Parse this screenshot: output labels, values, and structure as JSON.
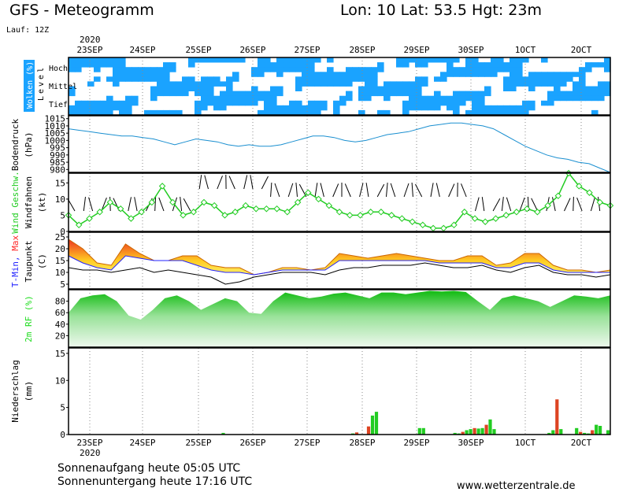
{
  "header": {
    "model": "GFS",
    "dash": "-",
    "title": "Meteogramm",
    "coords": "Lon: 10 Lat: 53.5 Hgt: 23m",
    "run": "Lauf: 12Z"
  },
  "year_top": "2020",
  "year_bottom": "2020",
  "dates": [
    "23SEP",
    "24SEP",
    "25SEP",
    "26SEP",
    "27SEP",
    "28SEP",
    "29SEP",
    "30SEP",
    "1OCT",
    "2OCT"
  ],
  "colors": {
    "cloud": "#1aa3ff",
    "wind": "#22cc22",
    "pressure": "#1a8fd0",
    "tmin": "#2222ff",
    "tmax": "#ff2222",
    "rh": "#22dd22",
    "rain_green": "#22cc22",
    "rain_red": "#dd4422"
  },
  "panels": {
    "clouds": {
      "label_top": "Wolken (%)",
      "label_level": "Level",
      "levels": [
        "Hoch",
        "Mittel",
        "Tief"
      ]
    },
    "pressure": {
      "ylabel1": "Bodendruck",
      "ylabel2": "(hPa)",
      "ticks": [
        "1015",
        "1010",
        "1005",
        "1000",
        "995",
        "990",
        "985",
        "980"
      ]
    },
    "wind": {
      "ylabel1": "Wind Geschw.",
      "ylabel2": "Windfahnen",
      "ylabel3": "(kt)",
      "ticks": [
        "15",
        "10",
        "5",
        "0"
      ]
    },
    "temp": {
      "ylabel_tmin": "T-Min,",
      "ylabel_tmax": "Max",
      "ylabel2": "Taupunkt",
      "ylabel3": "(C)",
      "ticks": [
        "25",
        "20",
        "15",
        "10",
        "5"
      ]
    },
    "rh": {
      "ylabel": "2m RF (%)",
      "ticks": [
        "80",
        "60",
        "40",
        "20"
      ]
    },
    "precip": {
      "ylabel1": "Niederschlag",
      "ylabel2": "(mm)",
      "ticks": [
        "15",
        "10",
        "5",
        "0"
      ]
    }
  },
  "chart_data": [
    {
      "type": "heatmap",
      "title": "Wolken (%)",
      "levels": [
        "Hoch",
        "Mittel",
        "Tief"
      ]
    },
    {
      "type": "line",
      "ylabel": "Bodendruck (hPa)",
      "ylim": [
        978,
        1017
      ],
      "values": [
        1008,
        1007,
        1006,
        1005,
        1004,
        1003,
        1003,
        1002,
        1001,
        999,
        997,
        999,
        1001,
        1000,
        999,
        997,
        996,
        997,
        996,
        996,
        997,
        999,
        1001,
        1003,
        1003,
        1002,
        1000,
        999,
        1000,
        1002,
        1004,
        1005,
        1006,
        1008,
        1010,
        1011,
        1012,
        1012,
        1011,
        1010,
        1008,
        1004,
        1000,
        996,
        993,
        990,
        988,
        987,
        985,
        984,
        981,
        978
      ]
    },
    {
      "type": "line",
      "ylabel": "Wind Geschw. (kt)",
      "ylim": [
        0,
        18
      ],
      "values": [
        5,
        2,
        4,
        6,
        9,
        7,
        4,
        6,
        9,
        14,
        9,
        5,
        6,
        9,
        8,
        5,
        6,
        8,
        7,
        7,
        7,
        6,
        9,
        12,
        10,
        8,
        6,
        5,
        5,
        6,
        6,
        5,
        4,
        3,
        2,
        1,
        1,
        2,
        6,
        4,
        3,
        4,
        5,
        6,
        7,
        6,
        8,
        11,
        18,
        14,
        12,
        9,
        8
      ]
    },
    {
      "type": "area",
      "ylabel": "T-Min, Max / Taupunkt (C)",
      "ylim": [
        3,
        27
      ],
      "series": [
        {
          "name": "Max",
          "values": [
            24,
            20,
            14,
            13,
            22,
            18,
            15,
            15,
            17,
            17,
            13,
            12,
            12,
            9,
            10,
            12,
            12,
            11,
            12,
            18,
            17,
            16,
            17,
            18,
            17,
            16,
            15,
            15,
            17,
            17,
            13,
            14,
            18,
            18,
            13,
            11,
            11,
            10,
            11
          ]
        },
        {
          "name": "Min",
          "values": [
            17,
            14,
            12,
            11,
            17,
            16,
            15,
            15,
            15,
            13,
            11,
            10,
            10,
            9,
            10,
            11,
            11,
            11,
            11,
            15,
            15,
            15,
            15,
            15,
            15,
            15,
            14,
            14,
            14,
            14,
            12,
            12,
            14,
            14,
            11,
            10,
            10,
            10,
            10
          ]
        },
        {
          "name": "Taupunkt",
          "values": [
            12,
            11,
            11,
            10,
            11,
            12,
            10,
            11,
            10,
            9,
            8,
            5,
            6,
            8,
            9,
            10,
            10,
            10,
            9,
            11,
            12,
            12,
            13,
            13,
            13,
            14,
            13,
            12,
            12,
            13,
            11,
            10,
            12,
            13,
            10,
            9,
            9,
            8,
            9
          ]
        }
      ]
    },
    {
      "type": "area",
      "ylabel": "2m RF (%)",
      "ylim": [
        0,
        100
      ],
      "values": [
        60,
        85,
        90,
        92,
        80,
        55,
        48,
        65,
        85,
        90,
        80,
        65,
        75,
        85,
        80,
        60,
        58,
        80,
        95,
        90,
        85,
        88,
        93,
        95,
        90,
        85,
        95,
        95,
        92,
        95,
        98,
        97,
        98,
        96,
        80,
        65,
        85,
        90,
        85,
        80,
        70,
        80,
        90,
        88,
        85,
        90
      ]
    },
    {
      "type": "bar",
      "ylabel": "Niederschlag (mm)",
      "ylim": [
        0,
        16
      ],
      "values": [
        0,
        0,
        0,
        0,
        0,
        0,
        0,
        0,
        0,
        0,
        0,
        0,
        0,
        0,
        0,
        0,
        0,
        0,
        0,
        0,
        0,
        0,
        0,
        0,
        0,
        0,
        0,
        0,
        0,
        0,
        0,
        0,
        0,
        0,
        0,
        0,
        0,
        0,
        0,
        0.3,
        0,
        0,
        0,
        0,
        0,
        0,
        0,
        0,
        0,
        0,
        0,
        0,
        0,
        0,
        0,
        0,
        0,
        0,
        0,
        0,
        0,
        0,
        0,
        0,
        0,
        0,
        0,
        0,
        0,
        0,
        0,
        0,
        0.2,
        0.4,
        0,
        0,
        1.5,
        3.5,
        4.2,
        0,
        0,
        0,
        0,
        0,
        0,
        0,
        0,
        0,
        0,
        1.2,
        1.2,
        0,
        0,
        0,
        0,
        0,
        0,
        0,
        0.3,
        0.2,
        0.5,
        0.8,
        1,
        1.2,
        1.1,
        1.2,
        1.8,
        2.8,
        1,
        0,
        0,
        0,
        0,
        0,
        0,
        0,
        0,
        0,
        0,
        0,
        0,
        0,
        0.3,
        0.8,
        6.5,
        1,
        0,
        0,
        0,
        1.2,
        0.5,
        0.3,
        0.2,
        0.8,
        1.8,
        1.6,
        0,
        0.8
      ]
    }
  ],
  "footer": {
    "sunrise": "Sonnenaufgang heute 05:05 UTC",
    "sunset": "Sonnenuntergang heute 17:16 UTC",
    "source": "www.wetterzentrale.de"
  }
}
